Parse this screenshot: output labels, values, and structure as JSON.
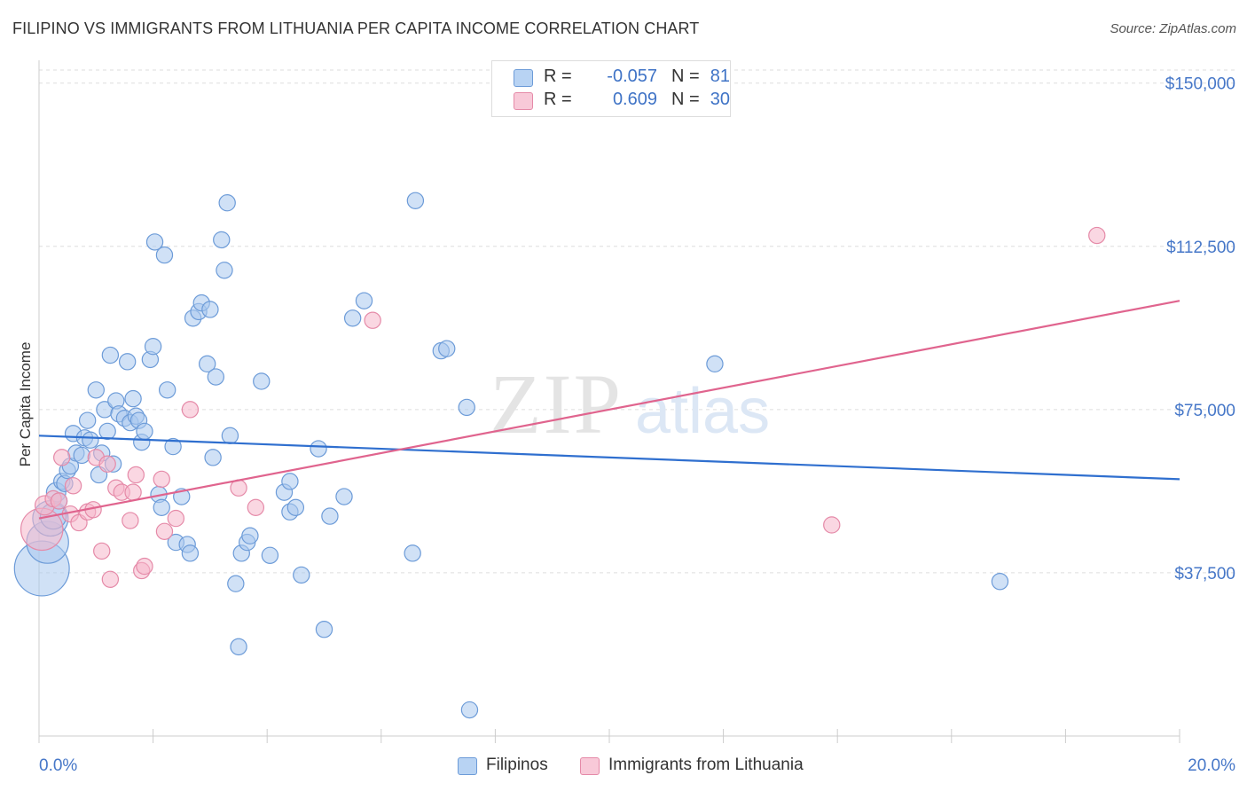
{
  "header": {
    "title": "FILIPINO VS IMMIGRANTS FROM LITHUANIA PER CAPITA INCOME CORRELATION CHART",
    "source": "Source: ZipAtlas.com"
  },
  "legend_top": {
    "rows": [
      {
        "r_label": "R =",
        "r_value": "-0.057",
        "n_label": "N =",
        "n_value": "81"
      },
      {
        "r_label": "R =",
        "r_value": "0.609",
        "n_label": "N =",
        "n_value": "30"
      }
    ]
  },
  "legend_bottom": {
    "items": [
      {
        "label": "Filipinos"
      },
      {
        "label": "Immigrants from Lithuania"
      }
    ]
  },
  "watermark": {
    "zip": "ZIP",
    "atlas": "atlas"
  },
  "colors": {
    "blue_fill": "#a9c8ef",
    "blue_stroke": "#6c9bd8",
    "blue_line": "#2f6fcf",
    "pink_fill": "#f5b7cb",
    "pink_stroke": "#e58aa8",
    "pink_line": "#e0648e",
    "axis_text": "#4677c8",
    "grid": "#dddddd"
  },
  "chart_data": {
    "type": "scatter",
    "title": "FILIPINO VS IMMIGRANTS FROM LITHUANIA PER CAPITA INCOME CORRELATION CHART",
    "xlabel": "",
    "ylabel": "Per Capita Income",
    "xlim": [
      0,
      20
    ],
    "ylim": [
      0,
      153000
    ],
    "x_tick_labels": [
      "0.0%",
      "20.0%"
    ],
    "y_ticks": [
      37500,
      75000,
      112500,
      150000
    ],
    "y_tick_labels": [
      "$37,500",
      "$75,000",
      "$112,500",
      "$150,000"
    ],
    "grid": true,
    "legend_position": "top-center",
    "series": [
      {
        "name": "Filipinos",
        "r": -0.057,
        "n": 81,
        "trend": {
          "x": [
            0,
            20
          ],
          "y": [
            69000,
            59000
          ]
        },
        "points": [
          [
            0.05,
            38500,
            34
          ],
          [
            0.15,
            44500,
            26
          ],
          [
            0.2,
            50000,
            22
          ],
          [
            0.25,
            50500,
            16
          ],
          [
            0.3,
            56000,
            12
          ],
          [
            0.35,
            54000,
            10
          ],
          [
            0.4,
            58500,
            10
          ],
          [
            0.45,
            58000,
            10
          ],
          [
            0.5,
            61000,
            10
          ],
          [
            0.55,
            62000,
            10
          ],
          [
            0.6,
            69500,
            10
          ],
          [
            0.65,
            65000,
            10
          ],
          [
            0.75,
            64500,
            10
          ],
          [
            0.8,
            68500,
            10
          ],
          [
            0.85,
            72500,
            10
          ],
          [
            0.9,
            68000,
            10
          ],
          [
            1.0,
            79500,
            10
          ],
          [
            1.05,
            60000,
            10
          ],
          [
            1.1,
            65000,
            10
          ],
          [
            1.15,
            75000,
            10
          ],
          [
            1.2,
            70000,
            10
          ],
          [
            1.25,
            87500,
            10
          ],
          [
            1.3,
            62500,
            10
          ],
          [
            1.35,
            77000,
            10
          ],
          [
            1.4,
            74000,
            10
          ],
          [
            1.5,
            73000,
            10
          ],
          [
            1.55,
            86000,
            10
          ],
          [
            1.6,
            72000,
            10
          ],
          [
            1.65,
            77500,
            10
          ],
          [
            1.7,
            73500,
            10
          ],
          [
            1.75,
            72500,
            10
          ],
          [
            1.8,
            67500,
            10
          ],
          [
            1.85,
            70000,
            10
          ],
          [
            1.95,
            86500,
            10
          ],
          [
            2.0,
            89500,
            10
          ],
          [
            2.03,
            113500,
            10
          ],
          [
            2.1,
            55500,
            10
          ],
          [
            2.15,
            52500,
            10
          ],
          [
            2.2,
            110500,
            10
          ],
          [
            2.25,
            79500,
            10
          ],
          [
            2.35,
            66500,
            10
          ],
          [
            2.4,
            44500,
            10
          ],
          [
            2.5,
            55000,
            10
          ],
          [
            2.6,
            44000,
            10
          ],
          [
            2.65,
            42000,
            10
          ],
          [
            2.7,
            96000,
            10
          ],
          [
            2.8,
            97500,
            10
          ],
          [
            2.85,
            99500,
            10
          ],
          [
            2.95,
            85500,
            10
          ],
          [
            3.0,
            98000,
            10
          ],
          [
            3.05,
            64000,
            10
          ],
          [
            3.1,
            82500,
            10
          ],
          [
            3.2,
            114000,
            10
          ],
          [
            3.25,
            107000,
            10
          ],
          [
            3.3,
            122500,
            10
          ],
          [
            3.35,
            69000,
            10
          ],
          [
            3.45,
            35000,
            10
          ],
          [
            3.5,
            20500,
            10
          ],
          [
            3.55,
            42000,
            10
          ],
          [
            3.65,
            44500,
            10
          ],
          [
            3.7,
            46000,
            10
          ],
          [
            3.9,
            81500,
            10
          ],
          [
            4.05,
            41500,
            10
          ],
          [
            4.3,
            56000,
            10
          ],
          [
            4.4,
            58500,
            10
          ],
          [
            4.4,
            51500,
            10
          ],
          [
            4.5,
            52500,
            10
          ],
          [
            4.6,
            37000,
            10
          ],
          [
            4.9,
            66000,
            10
          ],
          [
            5.0,
            24500,
            10
          ],
          [
            5.1,
            50500,
            10
          ],
          [
            5.35,
            55000,
            10
          ],
          [
            5.5,
            96000,
            10
          ],
          [
            5.7,
            100000,
            10
          ],
          [
            6.55,
            42000,
            10
          ],
          [
            6.6,
            123000,
            10
          ],
          [
            7.05,
            88500,
            10
          ],
          [
            7.15,
            89000,
            10
          ],
          [
            7.5,
            75500,
            10
          ],
          [
            7.55,
            6000,
            10
          ],
          [
            11.85,
            85500,
            10
          ],
          [
            16.85,
            35500,
            10
          ]
        ]
      },
      {
        "name": "Immigrants from Lithuania",
        "r": 0.609,
        "n": 30,
        "trend": {
          "x": [
            0,
            20
          ],
          "y": [
            50000,
            100000
          ]
        },
        "points": [
          [
            0.05,
            47500,
            26
          ],
          [
            0.1,
            53000,
            12
          ],
          [
            0.25,
            54500,
            10
          ],
          [
            0.35,
            54000,
            10
          ],
          [
            0.4,
            64000,
            10
          ],
          [
            0.55,
            51000,
            10
          ],
          [
            0.6,
            57500,
            10
          ],
          [
            0.7,
            49000,
            10
          ],
          [
            0.85,
            51500,
            10
          ],
          [
            0.95,
            52000,
            10
          ],
          [
            1.0,
            64000,
            10
          ],
          [
            1.1,
            42500,
            10
          ],
          [
            1.2,
            62500,
            10
          ],
          [
            1.25,
            36000,
            10
          ],
          [
            1.35,
            57000,
            10
          ],
          [
            1.45,
            56000,
            10
          ],
          [
            1.6,
            49500,
            10
          ],
          [
            1.65,
            56000,
            10
          ],
          [
            1.7,
            60000,
            10
          ],
          [
            1.8,
            38000,
            10
          ],
          [
            1.85,
            39000,
            10
          ],
          [
            2.15,
            59000,
            10
          ],
          [
            2.2,
            47000,
            10
          ],
          [
            2.4,
            50000,
            10
          ],
          [
            2.65,
            75000,
            10
          ],
          [
            3.5,
            57000,
            10
          ],
          [
            3.8,
            52500,
            10
          ],
          [
            5.85,
            95500,
            10
          ],
          [
            13.9,
            48500,
            10
          ],
          [
            18.55,
            115000,
            10
          ]
        ]
      }
    ]
  }
}
